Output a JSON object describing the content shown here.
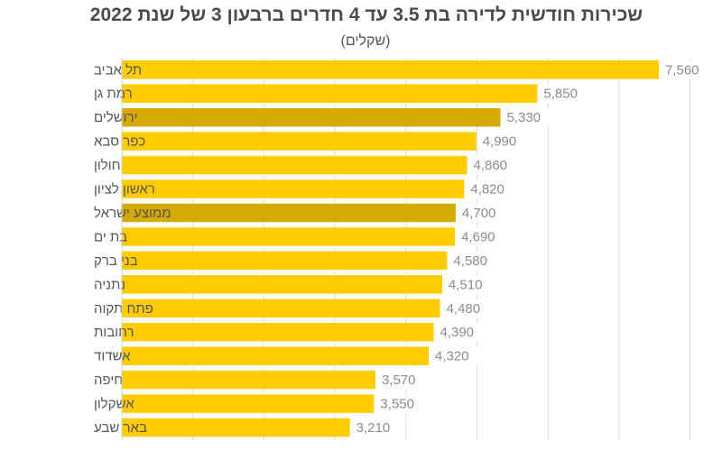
{
  "chart_data": {
    "type": "bar",
    "orientation": "horizontal",
    "title": "שכירות חודשית לדירה בת 3.5 עד 4 חדרים ברבעון 3 של שנת 2022",
    "subtitle": "(שקלים)",
    "xlabel": "",
    "ylabel": "",
    "xlim": [
      0,
      8000
    ],
    "grid_step": 1000,
    "grid": true,
    "legend": "none",
    "colors": {
      "default": "#FFCC00",
      "highlight": "#D4AA00"
    },
    "categories": [
      "תל אביב",
      "רמת גן",
      "ירושלים",
      "כפר סבא",
      "חולון",
      "ראשון לציון",
      "ממוצע ישראל",
      "בת ים",
      "בני ברק",
      "נתניה",
      "פתח תקוה",
      "רחובות",
      "אשדוד",
      "חיפה",
      "אשקלון",
      "באר שבע"
    ],
    "values": [
      7560,
      5850,
      5330,
      4990,
      4860,
      4820,
      4700,
      4690,
      4580,
      4510,
      4480,
      4390,
      4320,
      3570,
      3550,
      3210
    ],
    "value_labels": [
      "7,560",
      "5,850",
      "5,330",
      "4,990",
      "4,860",
      "4,820",
      "4,700",
      "4,690",
      "4,580",
      "4,510",
      "4,480",
      "4,390",
      "4,320",
      "3,570",
      "3,550",
      "3,210"
    ],
    "highlighted": [
      "ירושלים",
      "ממוצע ישראל"
    ]
  }
}
